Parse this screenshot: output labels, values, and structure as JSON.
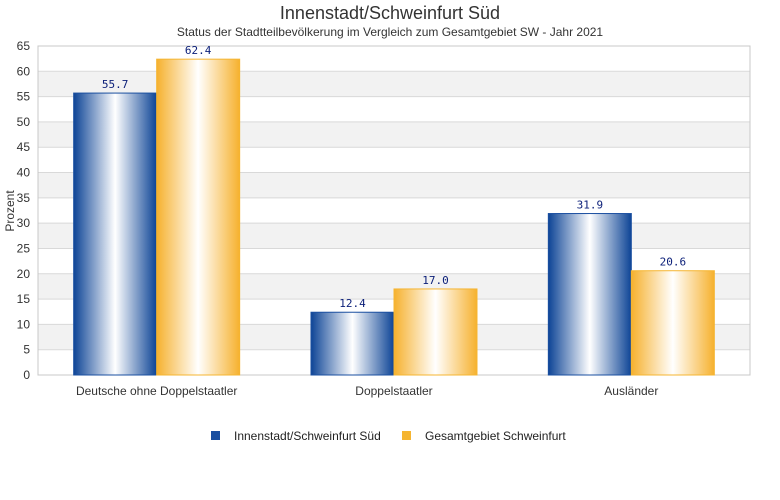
{
  "chart_data": {
    "type": "bar",
    "title": "Innenstadt/Schweinfurt Süd",
    "subtitle": "Status der Stadtteilbevölkerung im Vergleich zum Gesamtgebiet SW - Jahr 2021",
    "xlabel": "",
    "ylabel": "Prozent",
    "ylim": [
      0,
      65
    ],
    "yticks": [
      0,
      5,
      10,
      15,
      20,
      25,
      30,
      35,
      40,
      45,
      50,
      55,
      60,
      65
    ],
    "grid": true,
    "legend_position": "bottom",
    "categories": [
      "Deutsche ohne Doppelstaatler",
      "Doppelstaatler",
      "Ausländer"
    ],
    "series": [
      {
        "name": "Innenstadt/Schweinfurt Süd",
        "values": [
          55.7,
          12.4,
          31.9
        ],
        "labels": [
          "55.7",
          "12.4",
          "31.9"
        ],
        "color": "#1a4fa0"
      },
      {
        "name": "Gesamtgebiet Schweinfurt",
        "values": [
          62.4,
          17.0,
          20.6
        ],
        "labels": [
          "62.4",
          "17.0",
          "20.6"
        ],
        "color": "#f5b531"
      }
    ]
  }
}
